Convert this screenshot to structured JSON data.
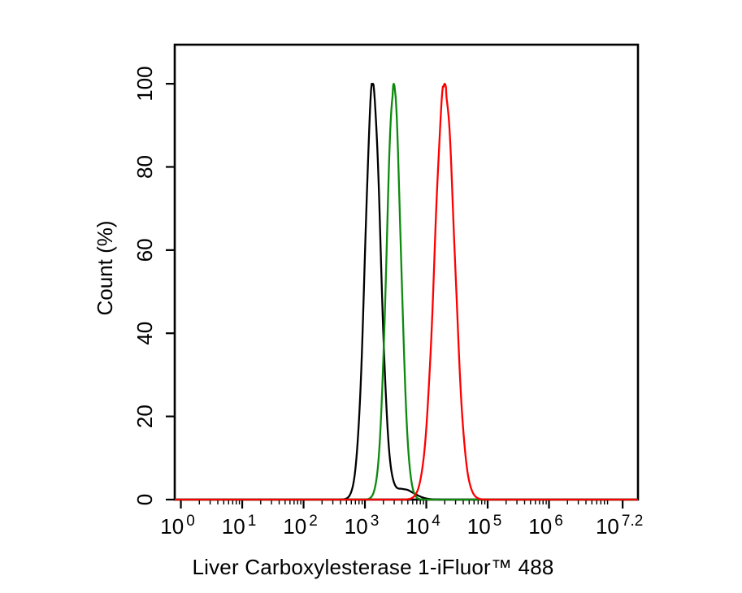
{
  "chart_data": {
    "type": "line",
    "subtype": "flow-cytometry-histogram",
    "background_color": "#ffffff",
    "axis_color": "#000000",
    "x_axis": {
      "label": "Liver Carboxylesterase 1-iFluor™ 488",
      "scale": "log10",
      "tick_base": "10",
      "tick_exponents": [
        0,
        1,
        2,
        3,
        4,
        5,
        6,
        7.2
      ],
      "range_exponents": [
        -0.1,
        7.45
      ],
      "minor_ticks": true
    },
    "y_axis": {
      "label": "Count (%)",
      "ticks": [
        0,
        20,
        40,
        60,
        80,
        100
      ],
      "range": [
        0,
        109.4
      ],
      "tick_labels_rotated": true
    },
    "grid": false,
    "legend": "none",
    "series": [
      {
        "name": "black-curve",
        "color": "#000000",
        "peak_log10_x": 3.13,
        "peak_percent": 100,
        "components": [
          {
            "mu": 3.13,
            "sigma": 0.125,
            "amp": 100
          },
          {
            "mu": 3.62,
            "sigma": 0.18,
            "amp": 2.5
          }
        ]
      },
      {
        "name": "green-curve",
        "color": "#0e8a0e",
        "peak_log10_x": 3.47,
        "peak_percent": 100,
        "components": [
          {
            "mu": 3.47,
            "sigma": 0.115,
            "amp": 100
          }
        ]
      },
      {
        "name": "red-curve",
        "color": "#fe0000",
        "peak_log10_x": 4.3,
        "peak_percent": 100,
        "components": [
          {
            "mu": 4.3,
            "sigma": 0.16,
            "amp": 100
          }
        ]
      }
    ]
  }
}
